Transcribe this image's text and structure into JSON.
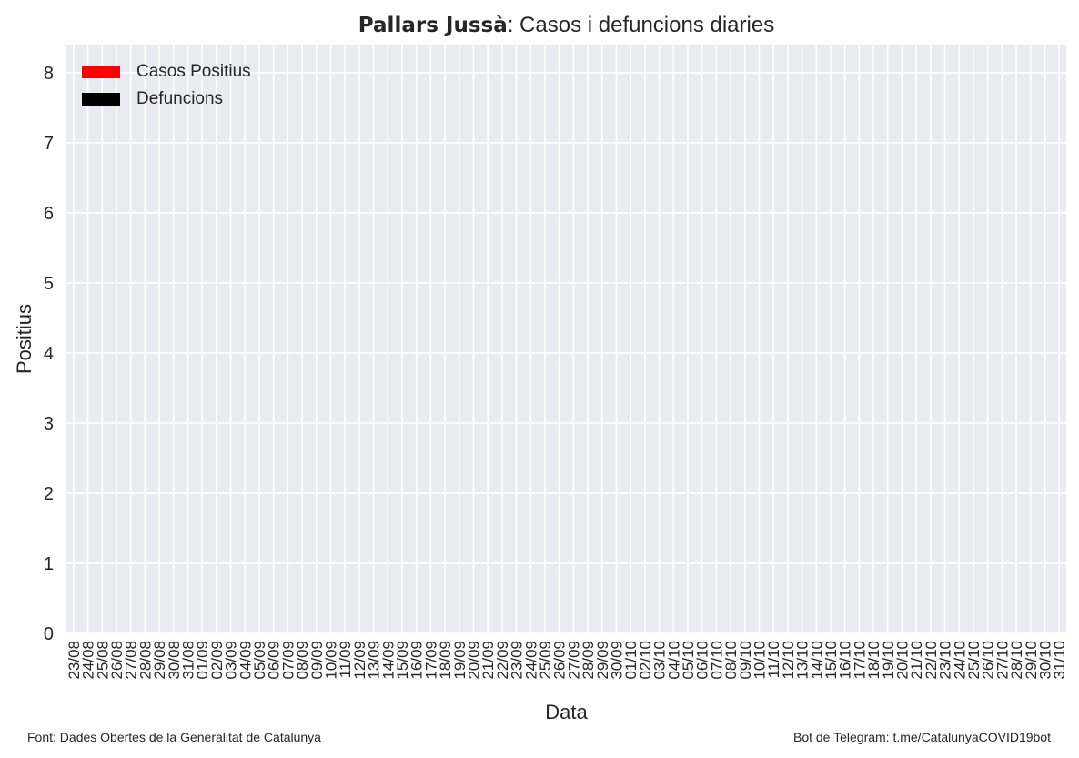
{
  "title": {
    "bold": "Pallars Jussà",
    "rest": ": Casos i defuncions diaries"
  },
  "footer": {
    "left": "Font: Dades Obertes de la Generalitat de Catalunya",
    "right": "Bot de Telegram: t.me/CatalunyaCOVID19bot"
  },
  "colors": {
    "background": "#eaeaf2",
    "grid": "#ffffff",
    "cases": "#ff0000",
    "deaths": "#000000",
    "text": "#262626"
  },
  "legend": [
    {
      "label": "Casos Positius",
      "color": "#ff0000"
    },
    {
      "label": "Defuncions",
      "color": "#000000"
    }
  ],
  "chart_data": {
    "type": "bar",
    "xlabel": "Data",
    "ylabel": "Positius",
    "ylim": [
      0,
      8.4
    ],
    "yticks": [
      0,
      1,
      2,
      3,
      4,
      5,
      6,
      7,
      8
    ],
    "grid": true,
    "legend_position": "top-left",
    "categories": [
      "23/08",
      "24/08",
      "25/08",
      "26/08",
      "27/08",
      "28/08",
      "29/08",
      "30/08",
      "31/08",
      "01/09",
      "02/09",
      "03/09",
      "04/09",
      "05/09",
      "06/09",
      "07/09",
      "08/09",
      "09/09",
      "10/09",
      "11/09",
      "12/09",
      "13/09",
      "14/09",
      "15/09",
      "16/09",
      "17/09",
      "18/09",
      "19/09",
      "20/09",
      "21/09",
      "22/09",
      "23/09",
      "24/09",
      "25/09",
      "26/09",
      "27/09",
      "28/09",
      "29/09",
      "30/09",
      "01/10",
      "02/10",
      "03/10",
      "04/10",
      "05/10",
      "06/10",
      "07/10",
      "08/10",
      "09/10",
      "10/10",
      "11/10",
      "12/10",
      "13/10",
      "14/10",
      "15/10",
      "16/10",
      "17/10",
      "18/10",
      "19/10",
      "20/10",
      "21/10",
      "22/10",
      "23/10",
      "24/10",
      "25/10",
      "26/10",
      "27/10",
      "28/10",
      "29/10",
      "30/10",
      "31/10"
    ],
    "series": [
      {
        "name": "Casos Positius",
        "color": "#ff0000",
        "values": [
          0,
          0,
          0,
          0,
          0,
          0,
          0,
          0,
          0,
          0,
          0,
          0,
          0,
          0,
          0,
          0,
          0,
          0,
          0,
          0,
          0,
          0,
          0,
          0,
          0,
          0,
          0,
          0,
          0,
          0,
          0,
          0,
          0,
          0,
          0,
          0,
          0,
          0,
          0,
          0,
          0,
          0,
          0,
          0,
          0,
          0,
          0,
          0,
          0,
          0,
          0,
          0,
          0,
          0,
          0,
          0,
          0,
          0,
          0,
          0,
          0,
          0,
          0,
          0,
          0,
          0,
          0,
          0,
          0,
          0
        ]
      },
      {
        "name": "Defuncions",
        "color": "#000000",
        "values": [
          0,
          0,
          0,
          0,
          0,
          0,
          0,
          0,
          0,
          0,
          0,
          0,
          0,
          0,
          0,
          0,
          0,
          0,
          0,
          0,
          0,
          0,
          0,
          0,
          0,
          0,
          0,
          0,
          0,
          0,
          0,
          0,
          0,
          0,
          0,
          0,
          0,
          0,
          0,
          0,
          0,
          0,
          0,
          0,
          0,
          0,
          0,
          0,
          0,
          0,
          0,
          0,
          0,
          0,
          0,
          0,
          0,
          0,
          0,
          0,
          0,
          0,
          0,
          0,
          0,
          0,
          0,
          0,
          0,
          0
        ]
      }
    ]
  }
}
